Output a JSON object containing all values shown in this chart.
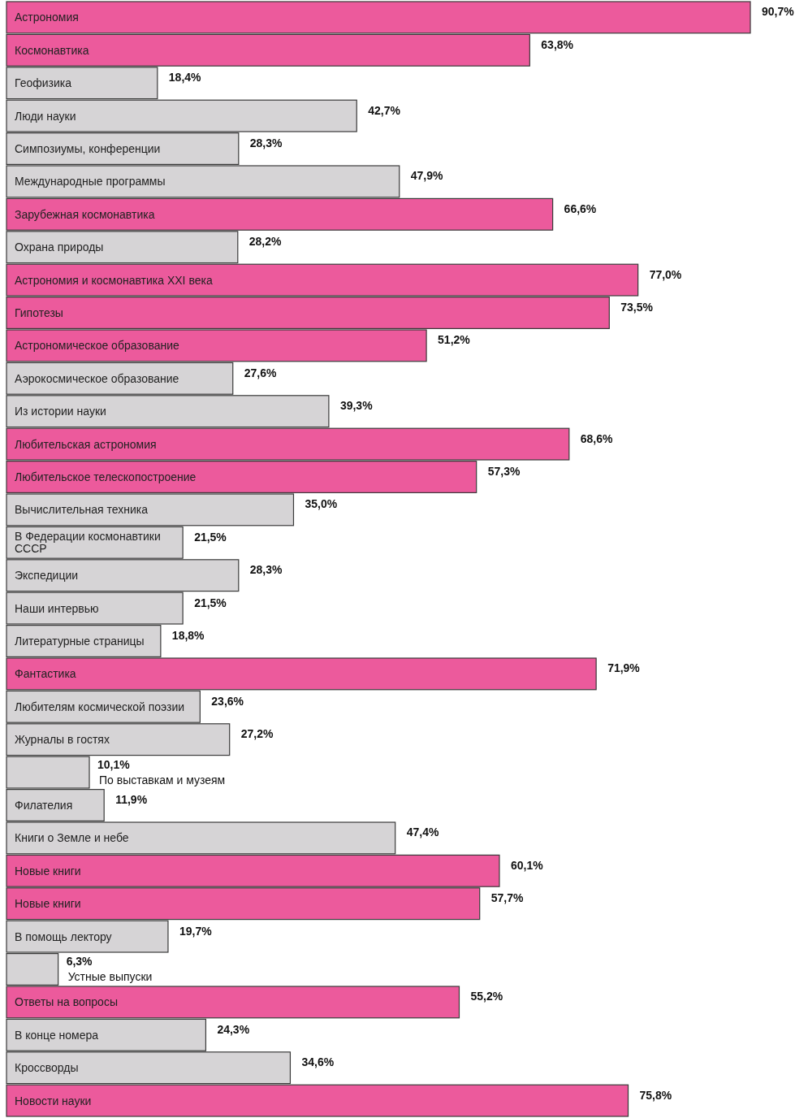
{
  "chart_data": {
    "type": "bar",
    "orientation": "horizontal",
    "categories": [
      "Астрономия",
      "Космонавтика",
      "Геофизика",
      "Люди науки",
      "Симпозиумы, конференции",
      "Международные программы",
      "Зарубежная космонавтика",
      "Охрана природы",
      "Астрономия и космонавтика XXI века",
      "Гипотезы",
      "Астрономическое образование",
      "Аэрокосмическое образование",
      "Из истории науки",
      "Любительская астрономия",
      "Любительское телескопостроение",
      "Вычислительная техника",
      "В Федерации космонавтики СССР",
      "Экспедиции",
      "Наши интервью",
      "Литературные страницы",
      "Фантастика",
      "Любителям космической поэзии",
      "Журналы в гостях",
      "По выставкам и музеям",
      "Филателия",
      "Книги о Земле и небе",
      "Новые книги",
      "Новые книги",
      "В помощь лектору",
      "Устные выпуски",
      "Ответы на вопросы",
      "В конце номера",
      "Кроссворды",
      "Новости науки"
    ],
    "values": [
      90.7,
      63.8,
      18.4,
      42.7,
      28.3,
      47.9,
      66.6,
      28.2,
      77.0,
      73.5,
      51.2,
      27.6,
      39.3,
      68.6,
      57.3,
      35.0,
      21.5,
      28.3,
      21.5,
      18.8,
      71.9,
      23.6,
      27.2,
      10.1,
      11.9,
      47.4,
      60.1,
      57.7,
      19.7,
      6.3,
      55.2,
      24.3,
      34.6,
      75.8
    ],
    "value_labels": [
      "90,7%",
      "63,8%",
      "18,4%",
      "42,7%",
      "28,3%",
      "47,9%",
      "66,6%",
      "28,2%",
      "77,0%",
      "73,5%",
      "51,2%",
      "27,6%",
      "39,3%",
      "68,6%",
      "57,3%",
      "35,0%",
      "21,5%",
      "28,3%",
      "21,5%",
      "18,8%",
      "71,9%",
      "23,6%",
      "27,2%",
      "10,1%",
      "11,9%",
      "47,4%",
      "60,1%",
      "57,7%",
      "19,7%",
      "6,3%",
      "55,2%",
      "24,3%",
      "34,6%",
      "75,8%"
    ],
    "colors": [
      "#ec5a9c",
      "#ec5a9c",
      "#d6d4d6",
      "#d6d4d6",
      "#d6d4d6",
      "#d6d4d6",
      "#ec5a9c",
      "#d6d4d6",
      "#ec5a9c",
      "#ec5a9c",
      "#ec5a9c",
      "#d6d4d6",
      "#d6d4d6",
      "#ec5a9c",
      "#ec5a9c",
      "#d6d4d6",
      "#d6d4d6",
      "#d6d4d6",
      "#d6d4d6",
      "#d6d4d6",
      "#ec5a9c",
      "#d6d4d6",
      "#d6d4d6",
      "#d6d4d6",
      "#d6d4d6",
      "#d6d4d6",
      "#ec5a9c",
      "#ec5a9c",
      "#d6d4d6",
      "#d6d4d6",
      "#ec5a9c",
      "#d6d4d6",
      "#d6d4d6",
      "#ec5a9c"
    ]
  }
}
